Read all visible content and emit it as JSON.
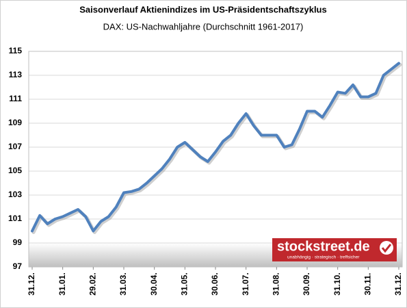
{
  "chart_data": {
    "type": "line",
    "title": "Saisonverlauf Aktienindizes im US-Präsidentschaftszyklus",
    "subtitle": "DAX: US-Nachwahljahre (Durchschnitt 1961-2017)",
    "categories": [
      "31.12.",
      null,
      null,
      null,
      "31.01.",
      null,
      null,
      null,
      "29.02.",
      null,
      null,
      null,
      "31.03.",
      null,
      null,
      null,
      "30.04.",
      null,
      null,
      null,
      "31.05.",
      null,
      null,
      null,
      "30.06.",
      null,
      null,
      null,
      "31.07.",
      null,
      null,
      null,
      "31.08.",
      null,
      null,
      null,
      "30.09.",
      null,
      null,
      null,
      "31.10.",
      null,
      null,
      null,
      "30.11.",
      null,
      null,
      null,
      "31.12."
    ],
    "values": [
      100.0,
      101.3,
      100.6,
      101.0,
      101.2,
      101.5,
      101.8,
      101.2,
      100.0,
      100.8,
      101.2,
      102.0,
      103.2,
      103.3,
      103.5,
      104.0,
      104.6,
      105.2,
      106.0,
      107.0,
      107.4,
      106.8,
      106.2,
      105.8,
      106.6,
      107.5,
      108.0,
      109.0,
      109.8,
      108.8,
      108.0,
      108.0,
      108.0,
      107.0,
      107.2,
      108.5,
      110.0,
      110.0,
      109.5,
      110.5,
      111.6,
      111.5,
      112.2,
      111.2,
      111.2,
      111.5,
      113.0,
      113.5,
      114.0
    ],
    "color": "#4f81bd",
    "ylim": [
      97,
      115
    ],
    "yticks": [
      97,
      99,
      101,
      103,
      105,
      107,
      109,
      111,
      113,
      115
    ],
    "grid": true,
    "logo": {
      "name": "stockstreet.de",
      "tagline": "unabhängig · strategisch · treffsicher"
    }
  }
}
